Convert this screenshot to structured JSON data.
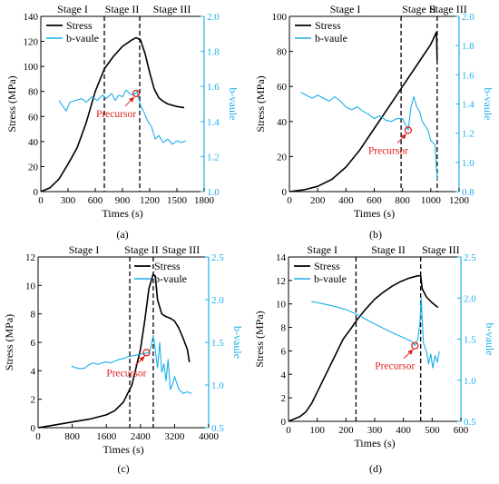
{
  "colors": {
    "stress": "#000000",
    "bvalue": "#1ab0e8",
    "precursor": "#e02020",
    "axis": "#000000"
  },
  "chart_data": [
    {
      "panel": "(a)",
      "type": "line",
      "xlabel": "Times (s)",
      "ylabel_left": "Stress (MPa)",
      "ylabel_right": "b-vaule",
      "xlim": [
        0,
        1800
      ],
      "ylim_left": [
        0,
        140
      ],
      "ylim_right": [
        1.0,
        2.0
      ],
      "xticks": [
        0,
        300,
        600,
        900,
        1200,
        1500,
        1800
      ],
      "yticks_left": [
        0,
        20,
        40,
        60,
        80,
        100,
        120,
        140
      ],
      "yticks_right": [
        1.0,
        1.2,
        1.4,
        1.6,
        1.8,
        2.0
      ],
      "legend": {
        "position": "top-left",
        "entries": [
          "Stress",
          "b-vaule"
        ]
      },
      "stages": [
        "Stage I",
        "Stage II",
        "Stage III"
      ],
      "stage_boundaries": [
        700,
        1090
      ],
      "precursor": {
        "label": "Precursor",
        "x": 1050,
        "b": 1.56
      },
      "series": [
        {
          "name": "Stress",
          "axis": "left",
          "points": [
            [
              0,
              0
            ],
            [
              100,
              3
            ],
            [
              200,
              10
            ],
            [
              300,
              22
            ],
            [
              400,
              35
            ],
            [
              500,
              55
            ],
            [
              600,
              80
            ],
            [
              700,
              98
            ],
            [
              800,
              108
            ],
            [
              900,
              116
            ],
            [
              1000,
              121
            ],
            [
              1050,
              123
            ],
            [
              1100,
              121
            ],
            [
              1150,
              110
            ],
            [
              1200,
              95
            ],
            [
              1250,
              82
            ],
            [
              1300,
              75
            ],
            [
              1350,
              72
            ],
            [
              1400,
              70
            ],
            [
              1500,
              68
            ],
            [
              1580,
              67
            ]
          ]
        },
        {
          "name": "b-vaule",
          "axis": "right",
          "points": [
            [
              200,
              1.52
            ],
            [
              240,
              1.49
            ],
            [
              280,
              1.46
            ],
            [
              320,
              1.51
            ],
            [
              380,
              1.52
            ],
            [
              450,
              1.53
            ],
            [
              500,
              1.51
            ],
            [
              560,
              1.54
            ],
            [
              620,
              1.52
            ],
            [
              680,
              1.55
            ],
            [
              720,
              1.53
            ],
            [
              780,
              1.56
            ],
            [
              820,
              1.52
            ],
            [
              860,
              1.55
            ],
            [
              900,
              1.54
            ],
            [
              940,
              1.58
            ],
            [
              980,
              1.56
            ],
            [
              1020,
              1.55
            ],
            [
              1060,
              1.57
            ],
            [
              1100,
              1.49
            ],
            [
              1140,
              1.45
            ],
            [
              1180,
              1.4
            ],
            [
              1220,
              1.37
            ],
            [
              1260,
              1.3
            ],
            [
              1300,
              1.32
            ],
            [
              1350,
              1.28
            ],
            [
              1400,
              1.3
            ],
            [
              1450,
              1.27
            ],
            [
              1500,
              1.29
            ],
            [
              1550,
              1.28
            ],
            [
              1600,
              1.29
            ]
          ]
        }
      ]
    },
    {
      "panel": "(b)",
      "type": "line",
      "xlabel": "Times (s)",
      "ylabel_left": "Stress (MPa)",
      "ylabel_right": "b-vaule",
      "xlim": [
        0,
        1200
      ],
      "ylim_left": [
        0,
        100
      ],
      "ylim_right": [
        0.8,
        2.0
      ],
      "xticks": [
        0,
        200,
        400,
        600,
        800,
        1000,
        1200
      ],
      "yticks_left": [
        0,
        20,
        40,
        60,
        80,
        100
      ],
      "yticks_right": [
        0.8,
        1.0,
        1.2,
        1.4,
        1.6,
        1.8,
        2.0
      ],
      "legend": {
        "position": "top-left",
        "entries": [
          "Stress",
          "b-vaule"
        ]
      },
      "stages": [
        "Stage I",
        "Stage II",
        "Stage III"
      ],
      "stage_boundaries": [
        790,
        1045
      ],
      "precursor": {
        "label": "Precursor",
        "x": 840,
        "b": 1.22
      },
      "series": [
        {
          "name": "Stress",
          "axis": "left",
          "points": [
            [
              0,
              0
            ],
            [
              100,
              1
            ],
            [
              200,
              3
            ],
            [
              300,
              7
            ],
            [
              400,
              14
            ],
            [
              500,
              24
            ],
            [
              600,
              36
            ],
            [
              700,
              48
            ],
            [
              800,
              60
            ],
            [
              850,
              66
            ],
            [
              900,
              72
            ],
            [
              950,
              78
            ],
            [
              1000,
              84
            ],
            [
              1040,
              91
            ],
            [
              1045,
              75
            ]
          ]
        },
        {
          "name": "b-vaule",
          "axis": "right",
          "points": [
            [
              80,
              1.48
            ],
            [
              120,
              1.46
            ],
            [
              160,
              1.44
            ],
            [
              200,
              1.46
            ],
            [
              240,
              1.44
            ],
            [
              280,
              1.42
            ],
            [
              320,
              1.45
            ],
            [
              360,
              1.42
            ],
            [
              400,
              1.38
            ],
            [
              440,
              1.36
            ],
            [
              480,
              1.38
            ],
            [
              520,
              1.35
            ],
            [
              560,
              1.33
            ],
            [
              600,
              1.3
            ],
            [
              640,
              1.32
            ],
            [
              680,
              1.29
            ],
            [
              720,
              1.28
            ],
            [
              760,
              1.3
            ],
            [
              800,
              1.3
            ],
            [
              840,
              1.22
            ],
            [
              860,
              1.38
            ],
            [
              880,
              1.45
            ],
            [
              900,
              1.38
            ],
            [
              920,
              1.35
            ],
            [
              940,
              1.28
            ],
            [
              960,
              1.25
            ],
            [
              980,
              1.22
            ],
            [
              1000,
              1.15
            ],
            [
              1030,
              1.12
            ],
            [
              1045,
              0.88
            ]
          ]
        }
      ]
    },
    {
      "panel": "(c)",
      "type": "line",
      "xlabel": "Times (s)",
      "ylabel_left": "Stress (MPa)",
      "ylabel_right": "b-vaule",
      "xlim": [
        0,
        4000
      ],
      "ylim_left": [
        0,
        12
      ],
      "ylim_right": [
        0.5,
        2.5
      ],
      "xticks": [
        0,
        800,
        1600,
        2400,
        3200,
        4000
      ],
      "yticks_left": [
        0,
        2,
        4,
        6,
        8,
        10,
        12
      ],
      "yticks_right": [
        0.5,
        1.0,
        1.5,
        2.0,
        2.5
      ],
      "legend": {
        "position": "top-right",
        "entries": [
          "Stress",
          "b-vaule"
        ]
      },
      "stages": [
        "Stage I",
        "Stage II",
        "Stage III"
      ],
      "stage_boundaries": [
        2150,
        2700
      ],
      "precursor": {
        "label": "Precursor",
        "x": 2540,
        "b": 1.38
      },
      "series": [
        {
          "name": "Stress",
          "axis": "left",
          "points": [
            [
              0,
              0
            ],
            [
              400,
              0.2
            ],
            [
              800,
              0.4
            ],
            [
              1200,
              0.6
            ],
            [
              1600,
              0.9
            ],
            [
              1800,
              1.2
            ],
            [
              2000,
              1.8
            ],
            [
              2200,
              3
            ],
            [
              2400,
              5.5
            ],
            [
              2500,
              7.5
            ],
            [
              2600,
              9.8
            ],
            [
              2700,
              10.8
            ],
            [
              2750,
              10.6
            ],
            [
              2800,
              9
            ],
            [
              2900,
              8
            ],
            [
              3000,
              7.8
            ],
            [
              3100,
              7.7
            ],
            [
              3200,
              7.5
            ],
            [
              3300,
              7
            ],
            [
              3400,
              6.3
            ],
            [
              3500,
              5.5
            ],
            [
              3550,
              4.6
            ]
          ]
        },
        {
          "name": "b-vaule",
          "axis": "right",
          "points": [
            [
              780,
              1.22
            ],
            [
              900,
              1.2
            ],
            [
              1000,
              1.19
            ],
            [
              1100,
              1.2
            ],
            [
              1200,
              1.24
            ],
            [
              1300,
              1.26
            ],
            [
              1400,
              1.24
            ],
            [
              1500,
              1.26
            ],
            [
              1600,
              1.27
            ],
            [
              1700,
              1.26
            ],
            [
              1800,
              1.28
            ],
            [
              1900,
              1.3
            ],
            [
              2000,
              1.31
            ],
            [
              2100,
              1.33
            ],
            [
              2200,
              1.34
            ],
            [
              2300,
              1.35
            ],
            [
              2400,
              1.36
            ],
            [
              2500,
              1.37
            ],
            [
              2600,
              1.38
            ],
            [
              2650,
              1.45
            ],
            [
              2700,
              1.58
            ],
            [
              2750,
              1.4
            ],
            [
              2800,
              1.2
            ],
            [
              2850,
              1.5
            ],
            [
              2900,
              1.15
            ],
            [
              2950,
              1.25
            ],
            [
              3000,
              1.05
            ],
            [
              3050,
              1.3
            ],
            [
              3100,
              0.95
            ],
            [
              3150,
              1.0
            ],
            [
              3200,
              1.1
            ],
            [
              3300,
              0.95
            ],
            [
              3400,
              0.9
            ],
            [
              3500,
              0.92
            ],
            [
              3600,
              0.9
            ]
          ]
        }
      ]
    },
    {
      "panel": "(d)",
      "type": "line",
      "xlabel": "Times (s)",
      "ylabel_left": "Stress (MPa)",
      "ylabel_right": "b-vaule",
      "xlim": [
        0,
        600
      ],
      "ylim_left": [
        0,
        14
      ],
      "ylim_right": [
        0.5,
        2.5
      ],
      "xticks": [
        0,
        100,
        200,
        300,
        400,
        500,
        600
      ],
      "yticks_left": [
        0,
        2,
        4,
        6,
        8,
        10,
        12,
        14
      ],
      "yticks_right": [
        0.5,
        1.0,
        1.5,
        2.0,
        2.5
      ],
      "legend": {
        "position": "top-left",
        "entries": [
          "Stress",
          "b-vaule"
        ]
      },
      "stages": [
        "Stage I",
        "Stage II",
        "Stage III"
      ],
      "stage_boundaries": [
        235,
        460
      ],
      "precursor": {
        "label": "Precursor",
        "x": 440,
        "b": 1.42
      },
      "series": [
        {
          "name": "Stress",
          "axis": "left",
          "points": [
            [
              0,
              0
            ],
            [
              20,
              0.2
            ],
            [
              40,
              0.4
            ],
            [
              60,
              0.8
            ],
            [
              80,
              1.5
            ],
            [
              100,
              2.5
            ],
            [
              130,
              4
            ],
            [
              160,
              5.5
            ],
            [
              190,
              7
            ],
            [
              220,
              8
            ],
            [
              240,
              8.7
            ],
            [
              270,
              9.6
            ],
            [
              300,
              10.4
            ],
            [
              330,
              11
            ],
            [
              360,
              11.5
            ],
            [
              390,
              11.9
            ],
            [
              420,
              12.2
            ],
            [
              450,
              12.4
            ],
            [
              460,
              12.4
            ],
            [
              465,
              11.3
            ],
            [
              480,
              10.6
            ],
            [
              500,
              10.1
            ],
            [
              520,
              9.7
            ]
          ]
        },
        {
          "name": "b-vaule",
          "axis": "right",
          "points": [
            [
              80,
              1.96
            ],
            [
              120,
              1.93
            ],
            [
              160,
              1.9
            ],
            [
              200,
              1.86
            ],
            [
              240,
              1.8
            ],
            [
              280,
              1.72
            ],
            [
              320,
              1.65
            ],
            [
              360,
              1.58
            ],
            [
              400,
              1.52
            ],
            [
              430,
              1.47
            ],
            [
              440,
              1.42
            ],
            [
              450,
              1.5
            ],
            [
              458,
              1.72
            ],
            [
              462,
              2.0
            ],
            [
              466,
              1.7
            ],
            [
              470,
              1.45
            ],
            [
              480,
              1.35
            ],
            [
              488,
              1.2
            ],
            [
              495,
              1.32
            ],
            [
              502,
              1.15
            ],
            [
              510,
              1.3
            ],
            [
              518,
              1.22
            ],
            [
              525,
              1.35
            ]
          ]
        }
      ]
    }
  ]
}
